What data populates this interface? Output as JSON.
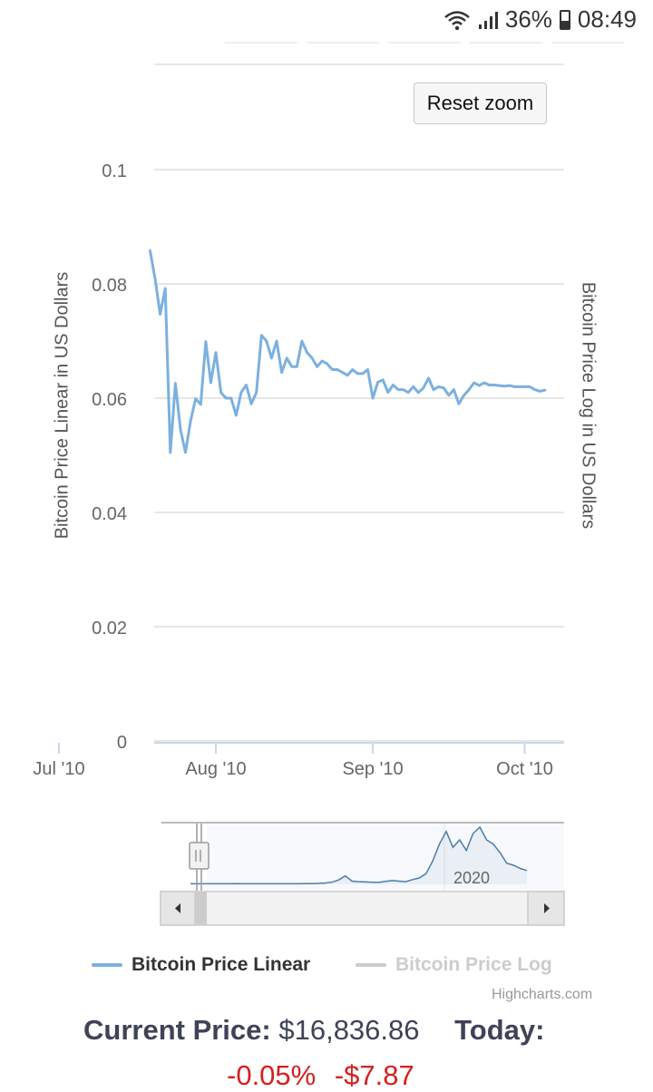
{
  "status": {
    "battery": "36%",
    "time": "08:49",
    "wifi_icon": "wifi-icon",
    "signal_icon": "signal-icon",
    "battery_icon": "battery-icon"
  },
  "reset_zoom_label": "Reset zoom",
  "chart_data": {
    "type": "line",
    "ylabel": "Bitcoin Price Linear in US Dollars",
    "ylabel_right": "Bitcoin Price Log in US Dollars",
    "ylim": [
      0,
      0.1
    ],
    "yticks": [
      "0",
      "0.02",
      "0.04",
      "0.06",
      "0.08",
      "0.1"
    ],
    "xlim": [
      "2010-07-01",
      "2010-10-07"
    ],
    "xticks": [
      {
        "label": "Jul '10",
        "date": "2010-07-01"
      },
      {
        "label": "Aug '10",
        "date": "2010-08-01"
      },
      {
        "label": "Sep '10",
        "date": "2010-09-01"
      },
      {
        "label": "Oct '10",
        "date": "2010-10-01"
      }
    ],
    "grid": true,
    "legend_position": "bottom",
    "series": [
      {
        "name": "Bitcoin Price Linear",
        "color": "#7cb0df",
        "visible": true,
        "points": [
          [
            "2010-07-19",
            0.0858
          ],
          [
            "2010-07-20",
            0.0808
          ],
          [
            "2010-07-21",
            0.0747
          ],
          [
            "2010-07-22",
            0.0792
          ],
          [
            "2010-07-23",
            0.0505
          ],
          [
            "2010-07-24",
            0.0626
          ],
          [
            "2010-07-25",
            0.0545
          ],
          [
            "2010-07-26",
            0.0505
          ],
          [
            "2010-07-27",
            0.056
          ],
          [
            "2010-07-28",
            0.0599
          ],
          [
            "2010-07-29",
            0.0589
          ],
          [
            "2010-07-30",
            0.0699
          ],
          [
            "2010-07-31",
            0.0627
          ],
          [
            "2010-08-01",
            0.068
          ],
          [
            "2010-08-02",
            0.061
          ],
          [
            "2010-08-03",
            0.06
          ],
          [
            "2010-08-04",
            0.06
          ],
          [
            "2010-08-05",
            0.057
          ],
          [
            "2010-08-06",
            0.061
          ],
          [
            "2010-08-07",
            0.0623
          ],
          [
            "2010-08-08",
            0.059
          ],
          [
            "2010-08-09",
            0.061
          ],
          [
            "2010-08-10",
            0.071
          ],
          [
            "2010-08-11",
            0.07
          ],
          [
            "2010-08-12",
            0.067
          ],
          [
            "2010-08-13",
            0.07
          ],
          [
            "2010-08-14",
            0.0645
          ],
          [
            "2010-08-15",
            0.067
          ],
          [
            "2010-08-16",
            0.0655
          ],
          [
            "2010-08-17",
            0.0655
          ],
          [
            "2010-08-18",
            0.07
          ],
          [
            "2010-08-19",
            0.068
          ],
          [
            "2010-08-20",
            0.067
          ],
          [
            "2010-08-21",
            0.0655
          ],
          [
            "2010-08-22",
            0.0665
          ],
          [
            "2010-08-23",
            0.066
          ],
          [
            "2010-08-24",
            0.065
          ],
          [
            "2010-08-25",
            0.065
          ],
          [
            "2010-08-26",
            0.0645
          ],
          [
            "2010-08-27",
            0.064
          ],
          [
            "2010-08-28",
            0.065
          ],
          [
            "2010-08-29",
            0.0643
          ],
          [
            "2010-08-30",
            0.0643
          ],
          [
            "2010-08-31",
            0.065
          ],
          [
            "2010-09-01",
            0.06
          ],
          [
            "2010-09-02",
            0.0628
          ],
          [
            "2010-09-03",
            0.0632
          ],
          [
            "2010-09-04",
            0.061
          ],
          [
            "2010-09-05",
            0.0623
          ],
          [
            "2010-09-06",
            0.0615
          ],
          [
            "2010-09-07",
            0.0615
          ],
          [
            "2010-09-08",
            0.061
          ],
          [
            "2010-09-09",
            0.062
          ],
          [
            "2010-09-10",
            0.061
          ],
          [
            "2010-09-11",
            0.0618
          ],
          [
            "2010-09-12",
            0.0635
          ],
          [
            "2010-09-13",
            0.0615
          ],
          [
            "2010-09-14",
            0.062
          ],
          [
            "2010-09-15",
            0.0618
          ],
          [
            "2010-09-16",
            0.0605
          ],
          [
            "2010-09-17",
            0.0615
          ],
          [
            "2010-09-18",
            0.059
          ],
          [
            "2010-09-19",
            0.0605
          ],
          [
            "2010-09-20",
            0.0615
          ],
          [
            "2010-09-21",
            0.0627
          ],
          [
            "2010-09-22",
            0.0622
          ],
          [
            "2010-09-23",
            0.0627
          ],
          [
            "2010-09-24",
            0.0623
          ],
          [
            "2010-09-25",
            0.0623
          ],
          [
            "2010-09-26",
            0.0622
          ],
          [
            "2010-09-27",
            0.0621
          ],
          [
            "2010-09-28",
            0.0622
          ],
          [
            "2010-09-29",
            0.062
          ],
          [
            "2010-09-30",
            0.062
          ],
          [
            "2010-10-01",
            0.062
          ],
          [
            "2010-10-02",
            0.062
          ],
          [
            "2010-10-03",
            0.0615
          ],
          [
            "2010-10-04",
            0.0612
          ],
          [
            "2010-10-05",
            0.0614
          ]
        ]
      },
      {
        "name": "Bitcoin Price Log",
        "color": "#cccccc",
        "visible": false
      }
    ],
    "navigator": {
      "year_label": "2020",
      "series_color": "#4a7eac",
      "values": [
        0.05,
        0.05,
        0.05,
        0.05,
        0.05,
        0.05,
        0.05,
        0.06,
        0.05,
        0.05,
        0.05,
        0.05,
        0.05,
        0.05,
        0.05,
        0.05,
        0.05,
        0.06,
        0.07,
        0.09,
        0.12,
        0.2,
        0.4,
        0.8,
        0.3,
        0.25,
        0.22,
        0.2,
        0.18,
        0.28,
        0.35,
        0.3,
        0.25,
        0.45,
        0.6,
        1.0,
        2.2,
        3.8,
        5.0,
        3.5,
        4.2,
        3.2,
        4.8,
        5.4,
        4.2,
        3.8,
        3.0,
        2.0,
        1.8,
        1.5,
        1.3
      ]
    }
  },
  "legend": {
    "items": [
      "Bitcoin Price Linear",
      "Bitcoin Price Log"
    ]
  },
  "credits": "Highcharts.com",
  "price": {
    "label": "Current Price:",
    "value": "$16,836.86",
    "today_label": "Today:",
    "change_pct": "-0.05%",
    "change_abs": "-$7.87"
  }
}
